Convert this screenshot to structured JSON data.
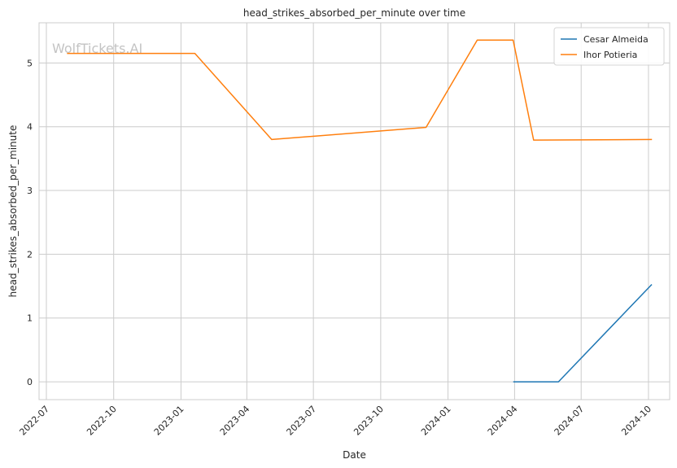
{
  "chart_data": {
    "type": "line",
    "title": "head_strikes_absorbed_per_minute over time",
    "xlabel": "Date",
    "ylabel": "head_strikes_absorbed_per_minute",
    "watermark": "WolfTickets.AI",
    "xlim": [
      "2022-06-21",
      "2024-10-30"
    ],
    "ylim": [
      -0.28,
      5.63
    ],
    "x_ticks": [
      "2022-07",
      "2022-10",
      "2023-01",
      "2023-04",
      "2023-07",
      "2023-10",
      "2024-01",
      "2024-04",
      "2024-07",
      "2024-10"
    ],
    "y_ticks": [
      0,
      1,
      2,
      3,
      4,
      5
    ],
    "grid": true,
    "legend_position": "top-right",
    "series": [
      {
        "name": "Cesar Almeida",
        "color": "#1f77b4",
        "points": [
          {
            "x": "2024-03-31",
            "y": 0.0
          },
          {
            "x": "2024-05-31",
            "y": 0.0
          },
          {
            "x": "2024-10-05",
            "y": 1.52
          }
        ]
      },
      {
        "name": "Ihor Potieria",
        "color": "#ff7f0e",
        "points": [
          {
            "x": "2022-07-30",
            "y": 5.15
          },
          {
            "x": "2023-01-20",
            "y": 5.15
          },
          {
            "x": "2023-05-05",
            "y": 3.8
          },
          {
            "x": "2023-12-02",
            "y": 3.99
          },
          {
            "x": "2024-02-10",
            "y": 5.36
          },
          {
            "x": "2024-03-30",
            "y": 5.36
          },
          {
            "x": "2024-04-27",
            "y": 3.79
          },
          {
            "x": "2024-10-05",
            "y": 3.8
          }
        ]
      }
    ]
  }
}
